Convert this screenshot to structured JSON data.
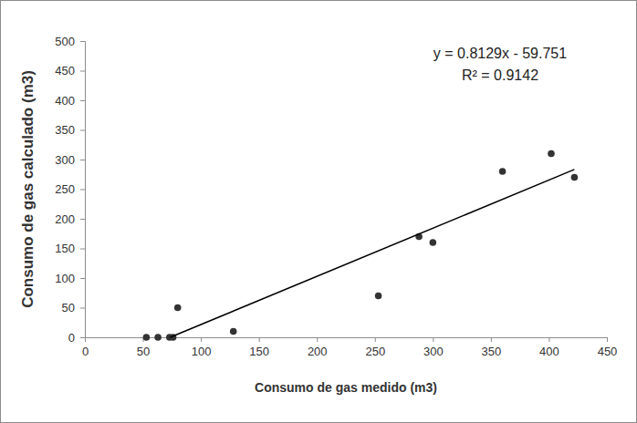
{
  "chart_data": {
    "type": "scatter",
    "x_label": "Consumo de gas medido (m3)",
    "y_label": "Consumo de gas calculado (m3)",
    "annotations": [
      "y = 0.8129x - 59.751",
      "R² = 0.9142"
    ],
    "series": [
      {
        "type": "scatter",
        "color": "#333333",
        "marker": "circle",
        "x": [
          53,
          63,
          73,
          76,
          80,
          128,
          253,
          288,
          300,
          360,
          402,
          422
        ],
        "values": [
          0,
          0,
          0,
          0,
          50,
          10,
          70,
          170,
          160,
          280,
          310,
          270
        ]
      },
      {
        "type": "line",
        "color": "#000000",
        "line_style": "solid",
        "x": [
          73.5,
          422
        ],
        "values": [
          0,
          283.3
        ]
      }
    ],
    "xlim": [
      0,
      450
    ],
    "xticks": [
      0,
      50,
      100,
      150,
      200,
      250,
      300,
      350,
      400,
      450
    ],
    "ylim": [
      0,
      500
    ],
    "yticks": [
      0,
      50,
      100,
      150,
      200,
      250,
      300,
      350,
      400,
      450,
      500
    ],
    "grid": false
  }
}
